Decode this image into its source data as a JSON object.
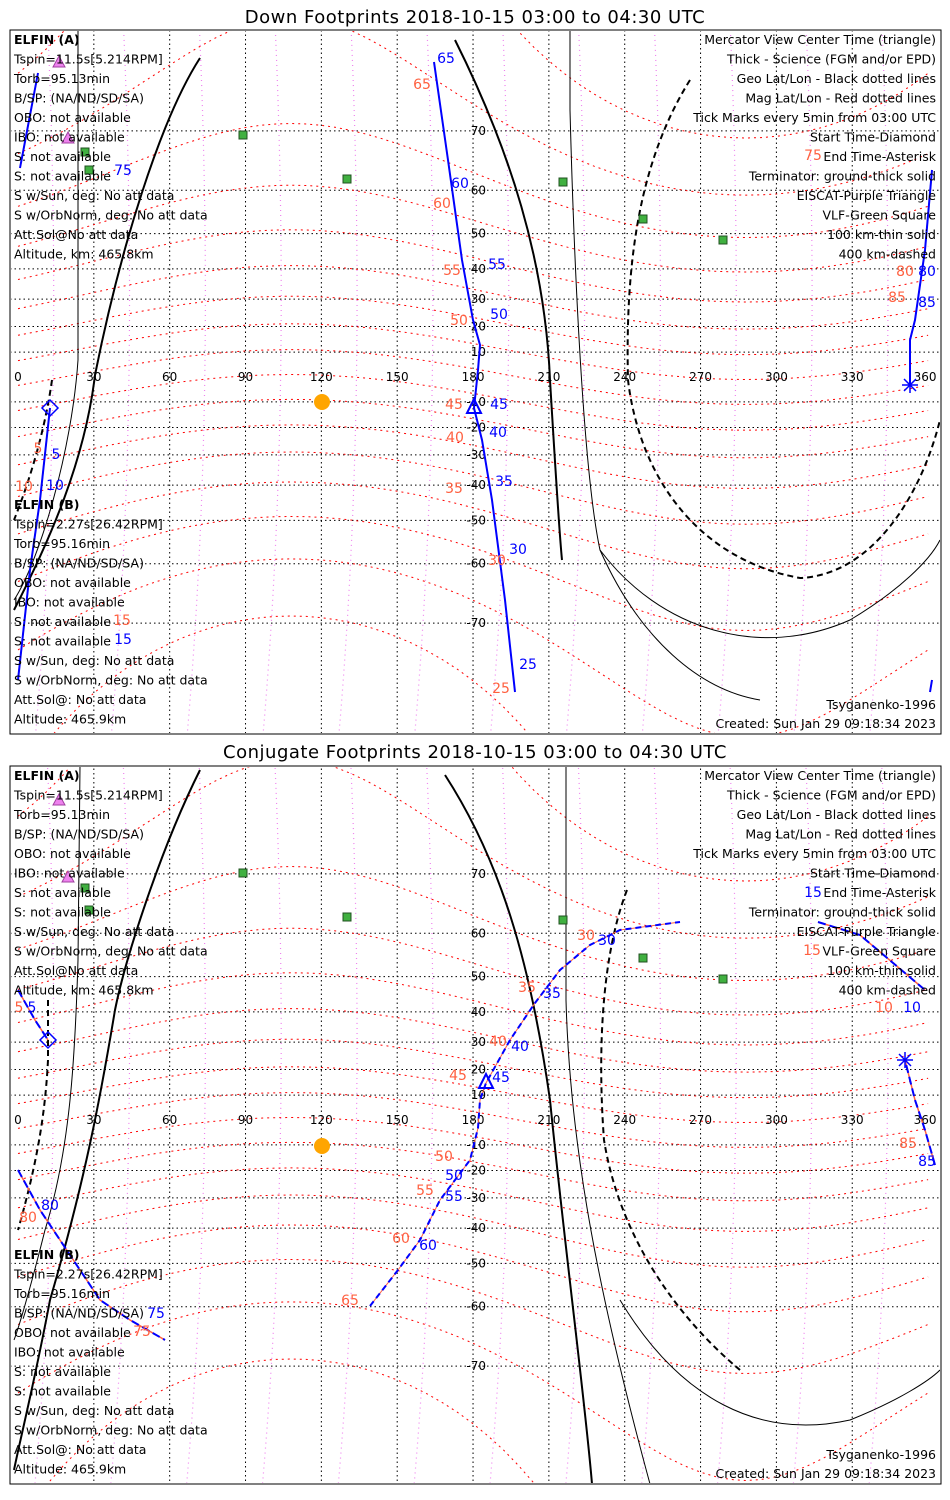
{
  "colors": {
    "elfin_a": "#0000ff",
    "elfin_b": "#ff6040",
    "mag_grid": "#ff0000",
    "eiscat": "#ee82ee",
    "vlf": "#40b040",
    "sun": "#ffa500"
  },
  "lon_ticks": [
    "0",
    "30",
    "60",
    "90",
    "120",
    "150",
    "180",
    "210",
    "240",
    "270",
    "300",
    "330",
    "360"
  ],
  "lat_ticks": [
    "70",
    "60",
    "50",
    "40",
    "30",
    "20",
    "10",
    "-10",
    "-20",
    "-30",
    "-40",
    "-50",
    "-60",
    "-70"
  ],
  "panels": [
    {
      "title": "Down Footprints 2018-10-15 03:00 to 04:30 UTC",
      "elfin_a": {
        "name": "ELFIN (A)",
        "lines": [
          "Tspin=11.5s[5.214RPM]",
          "Torb=95.13min",
          "B/SP: (NA/ND/SD/SA)",
          "OBO: not available",
          "IBO: not available",
          "S: not available",
          "S: not available",
          "S w/Sun, deg: No att data",
          "S w/OrbNorm, deg: No att data",
          "Att.Sol@No att data",
          "Altitude, km: 465.8km"
        ]
      },
      "elfin_b": {
        "name": "ELFIN (B)",
        "lines": [
          "Tspin=2.27s[26.42RPM]",
          "Torb=95.16min",
          "B/SP: (NA/ND/SD/SA)",
          "OBO: not available",
          "IBO: not available",
          "S: not available",
          "S: not available",
          "S w/Sun, deg: No att data",
          "S w/OrbNorm, deg: No att data",
          "Att.Sol@: No att data",
          "Altitude: 465.9km"
        ]
      },
      "legend": [
        "Mercator View Center Time (triangle)",
        "Thick - Science (FGM and/or EPD)",
        "Geo Lat/Lon - Black dotted lines",
        "Mag Lat/Lon - Red dotted lines",
        "Tick Marks every 5min from 03:00 UTC",
        "Start Time-Diamond",
        "End Time-Asterisk",
        "Terminator: ground-thick solid",
        "EISCAT-Purple Triangle",
        "VLF-Green Square",
        "100 km-thin solid",
        "400 km-dashed"
      ],
      "model": "Tsyganenko-1996",
      "created": "Created: Sun Jan 29 09:18:34 2023",
      "tick_labels": {
        "a_blue": [
          "65",
          "60",
          "55",
          "50",
          "45",
          "40",
          "35",
          "30",
          "25"
        ],
        "a_red": [
          "65",
          "60",
          "55",
          "50",
          "45",
          "40",
          "35",
          "30",
          "25"
        ],
        "b_blue": [
          "5",
          "10",
          "15",
          "80",
          "85",
          "75"
        ],
        "b_red": [
          "5",
          "10",
          "15",
          "75",
          "80",
          "85"
        ]
      }
    },
    {
      "title": "Conjugate Footprints 2018-10-15 03:00 to 04:30 UTC",
      "elfin_a": {
        "name": "ELFIN (A)",
        "lines": [
          "Tspin=11.5s[5.214RPM]",
          "Torb=95.13min",
          "B/SP: (NA/ND/SD/SA)",
          "OBO: not available",
          "IBO: not available",
          "S: not available",
          "S: not available",
          "S w/Sun, deg: No att data",
          "S w/OrbNorm, deg: No att data",
          "Att.Sol@No att data",
          "Altitude, km: 465.8km"
        ]
      },
      "elfin_b": {
        "name": "ELFIN (B)",
        "lines": [
          "Tspin=2.27s[26.42RPM]",
          "Torb=95.16min",
          "B/SP: (NA/ND/SD/SA)",
          "OBO: not available",
          "IBO: not available",
          "S: not available",
          "S: not available",
          "S w/Sun, deg: No att data",
          "S w/OrbNorm, deg: No att data",
          "Att.Sol@: No att data",
          "Altitude: 465.9km"
        ]
      },
      "legend": [
        "Mercator View Center Time (triangle)",
        "Thick - Science (FGM and/or EPD)",
        "Geo Lat/Lon - Black dotted lines",
        "Mag Lat/Lon - Red dotted lines",
        "Tick Marks every 5min from 03:00 UTC",
        "Start Time-Diamond",
        "End Time-Asterisk",
        "Terminator: ground-thick solid",
        "EISCAT-Purple Triangle",
        "VLF-Green Square",
        "100 km-thin solid",
        "400 km-dashed"
      ],
      "model": "Tsyganenko-1996",
      "created": "Created: Sun Jan 29 09:18:34 2023",
      "tick_labels": {
        "a_blue": [
          "30",
          "35",
          "40",
          "45",
          "50",
          "55",
          "60"
        ],
        "a_red": [
          "30",
          "35",
          "40",
          "45",
          "50",
          "55",
          "60",
          "65"
        ],
        "b_blue": [
          "15",
          "10",
          "85",
          "5",
          "80",
          "75"
        ],
        "b_red": [
          "15",
          "10",
          "85",
          "5",
          "80",
          "75"
        ]
      }
    }
  ]
}
